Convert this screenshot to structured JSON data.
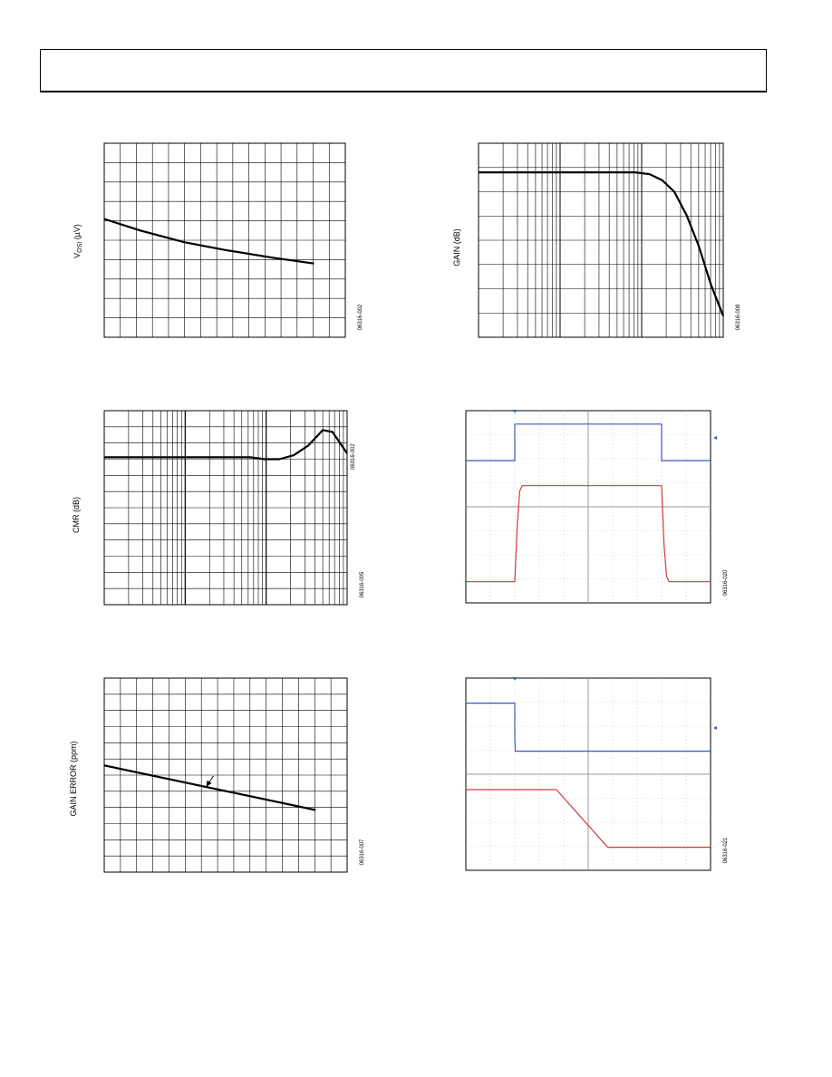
{
  "page": {
    "header": ""
  },
  "chart_data": [
    {
      "id": "vosi",
      "type": "line",
      "ylabel_main": "V",
      "ylabel_sub": "OSI",
      "ylabel_rest": " (µV)",
      "fig_code": "06316-002",
      "grid": true,
      "x_scale": "linear",
      "xlim": [
        0,
        1
      ],
      "ylim": [
        0,
        1
      ],
      "series": [
        {
          "x": [
            0,
            0.15,
            0.33,
            0.5,
            0.7,
            0.87
          ],
          "y": [
            0.61,
            0.55,
            0.49,
            0.45,
            0.41,
            0.38
          ]
        }
      ]
    },
    {
      "id": "gain",
      "type": "line",
      "ylabel": "GAIN (dB)",
      "fig_code": "06316-008",
      "grid": true,
      "x_scale": "log",
      "xlim": [
        0,
        1
      ],
      "ylim": [
        0,
        1
      ],
      "series": [
        {
          "x": [
            0,
            0.2,
            0.4,
            0.55,
            0.64,
            0.7,
            0.75,
            0.8,
            0.85,
            0.9,
            0.95,
            1.0
          ],
          "y": [
            0.85,
            0.85,
            0.85,
            0.85,
            0.85,
            0.84,
            0.81,
            0.75,
            0.63,
            0.47,
            0.27,
            0.11
          ]
        }
      ]
    },
    {
      "id": "cmr",
      "type": "line",
      "ylabel": "CMR (dB)",
      "fig_code": "06316-005",
      "grid": true,
      "x_scale": "log",
      "xlim": [
        0,
        1
      ],
      "ylim": [
        0,
        1
      ],
      "series": [
        {
          "x": [
            0,
            0.25,
            0.5,
            0.6,
            0.66,
            0.72,
            0.78,
            0.84,
            0.9,
            0.94,
            1.0
          ],
          "y": [
            0.76,
            0.76,
            0.76,
            0.76,
            0.75,
            0.75,
            0.77,
            0.82,
            0.9,
            0.89,
            0.78
          ]
        }
      ]
    },
    {
      "id": "scope1",
      "type": "line",
      "fig_code": "06316-020",
      "grid": true,
      "xlim": [
        0,
        1
      ],
      "ylim": [
        0,
        1
      ],
      "series": [
        {
          "name": "",
          "color": "#3b58c4",
          "x": [
            0,
            0.2,
            0.2,
            0.8,
            0.8,
            1.0
          ],
          "y": [
            0.74,
            0.74,
            0.93,
            0.93,
            0.74,
            0.74
          ]
        },
        {
          "name": "",
          "color": "#d23a3a",
          "x": [
            0,
            0.2,
            0.21,
            0.22,
            0.23,
            0.8,
            0.81,
            0.82,
            0.83,
            1.0
          ],
          "y": [
            0.11,
            0.11,
            0.4,
            0.58,
            0.61,
            0.61,
            0.3,
            0.14,
            0.11,
            0.11
          ]
        }
      ]
    },
    {
      "id": "gain_error",
      "type": "line",
      "ylabel": "GAIN ERROR (ppm)",
      "fig_code": "06316-007",
      "grid": true,
      "x_scale": "linear",
      "xlim": [
        0,
        1
      ],
      "ylim": [
        0,
        1
      ],
      "series": [
        {
          "x": [
            0,
            0.87
          ],
          "y": [
            0.55,
            0.32
          ]
        }
      ]
    },
    {
      "id": "scope2",
      "type": "line",
      "fig_code": "06316-021",
      "grid": true,
      "xlim": [
        0,
        1
      ],
      "ylim": [
        0,
        1
      ],
      "series": [
        {
          "name": "",
          "color": "#3b58c4",
          "x": [
            0,
            0.2,
            0.2,
            0.202,
            1.0
          ],
          "y": [
            0.87,
            0.87,
            0.7,
            0.62,
            0.62
          ]
        },
        {
          "name": "",
          "color": "#d23a3a",
          "x": [
            0,
            0.37,
            0.58,
            1.0
          ],
          "y": [
            0.42,
            0.42,
            0.12,
            0.12
          ]
        }
      ]
    }
  ]
}
